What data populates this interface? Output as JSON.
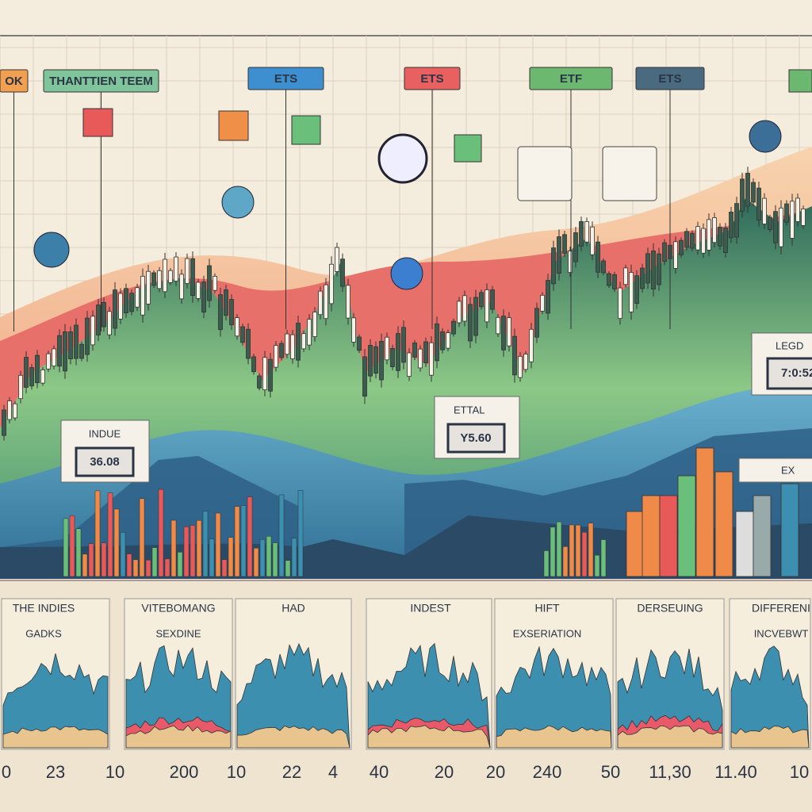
{
  "tags": [
    "OK",
    "THANTTIEN TEEM",
    "ETS",
    "ETS",
    "ETF",
    "ETS"
  ],
  "callouts": [
    {
      "title": "INDUE",
      "value": "36.08"
    },
    {
      "title": "ETTAL",
      "value": "Y5.60"
    },
    {
      "title": "LEGD",
      "value": "7:0:52"
    }
  ],
  "ex_label": "EX",
  "panels": [
    {
      "title": "THE INDIES",
      "subtitle": "GADKS"
    },
    {
      "title": "VITEBOMANG",
      "subtitle": "SEXDINE"
    },
    {
      "title": "HAD"
    },
    {
      "title": "INDEST"
    },
    {
      "title": "HIFT",
      "subtitle": "EXSERIATION"
    },
    {
      "title": "DERSEUING"
    },
    {
      "title": "DIFFERENI",
      "subtitle": "INCVEBWT"
    }
  ],
  "axis_labels": [
    "0",
    "23",
    "10",
    "200",
    "10",
    "22",
    "4",
    "40",
    "20",
    "20",
    "240",
    "50",
    "11,30",
    "11.40",
    "10"
  ]
}
